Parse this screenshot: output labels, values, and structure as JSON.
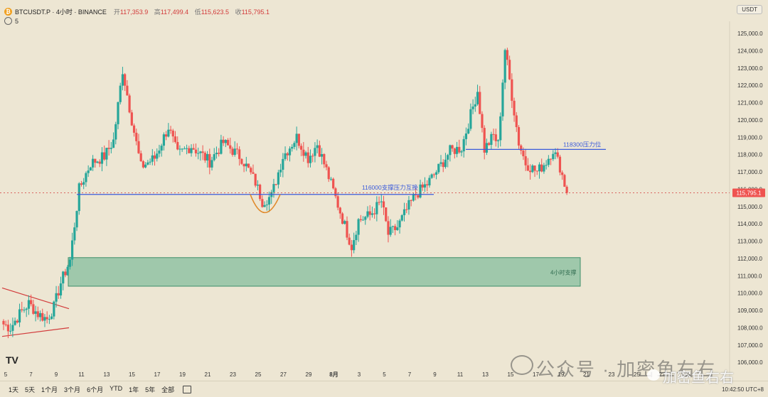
{
  "header": {
    "symbol": "BTCUSDT.P",
    "interval": "4小时",
    "exchange": "BINANCE",
    "title_full": "BTCUSDT.P · 4小时 · BINANCE",
    "open_label": "开",
    "open_value": "117,353.9",
    "high_label": "高",
    "high_value": "117,499.4",
    "low_label": "低",
    "low_value": "115,623.5",
    "close_label": "收",
    "close_value": "115,795.1",
    "indicator_count": "5"
  },
  "unit_label": "USDT",
  "last_price_label": "115,795.1",
  "colors": {
    "up": "#26a69a",
    "down": "#ef5350",
    "support_zone": "#5fae8a",
    "line": "#3b5bdb"
  },
  "chart_data": {
    "type": "candlestick",
    "interval": "4h",
    "x_labels": [
      "5",
      "7",
      "9",
      "11",
      "13",
      "15",
      "17",
      "19",
      "21",
      "23",
      "25",
      "27",
      "29",
      "8月",
      "3",
      "5",
      "7",
      "9",
      "11",
      "13",
      "15",
      "17",
      "19",
      "21",
      "23",
      "25",
      "27",
      "29"
    ],
    "y_ticks": [
      "125,000.0",
      "124,000.0",
      "123,000.0",
      "122,000.0",
      "121,000.0",
      "120,000.0",
      "119,000.0",
      "118,000.0",
      "117,000.0",
      "116,000.0",
      "115,000.0",
      "114,000.0",
      "113,000.0",
      "112,000.0",
      "111,000.0",
      "110,000.0",
      "109,000.0",
      "108,000.0",
      "107,000.0",
      "106,000.0"
    ],
    "ylim": [
      105600,
      125700
    ],
    "path_anchors": [
      [
        0,
        108200
      ],
      [
        3,
        108000
      ],
      [
        7,
        108800
      ],
      [
        11,
        109400
      ],
      [
        15,
        108800
      ],
      [
        19,
        108500
      ],
      [
        22,
        109200
      ],
      [
        25,
        110600
      ],
      [
        29,
        111900
      ],
      [
        33,
        116000
      ],
      [
        38,
        117500
      ],
      [
        44,
        117900
      ],
      [
        48,
        118800
      ],
      [
        52,
        122900
      ],
      [
        56,
        120000
      ],
      [
        60,
        117300
      ],
      [
        66,
        117800
      ],
      [
        72,
        119600
      ],
      [
        76,
        118000
      ],
      [
        82,
        118500
      ],
      [
        90,
        117600
      ],
      [
        96,
        118700
      ],
      [
        104,
        117800
      ],
      [
        110,
        116400
      ],
      [
        113,
        115300
      ],
      [
        117,
        115600
      ],
      [
        122,
        117900
      ],
      [
        128,
        119000
      ],
      [
        133,
        117800
      ],
      [
        137,
        118600
      ],
      [
        141,
        117100
      ],
      [
        145,
        115500
      ],
      [
        148,
        114300
      ],
      [
        152,
        112700
      ],
      [
        155,
        114200
      ],
      [
        160,
        114500
      ],
      [
        165,
        115300
      ],
      [
        168,
        113400
      ],
      [
        172,
        113800
      ],
      [
        176,
        114800
      ],
      [
        180,
        115700
      ],
      [
        185,
        116300
      ],
      [
        190,
        117200
      ],
      [
        195,
        118200
      ],
      [
        200,
        118400
      ],
      [
        204,
        120300
      ],
      [
        207,
        121700
      ],
      [
        210,
        118300
      ],
      [
        214,
        119100
      ],
      [
        216,
        118600
      ],
      [
        219,
        124100
      ],
      [
        222,
        121400
      ],
      [
        225,
        118700
      ],
      [
        228,
        117500
      ],
      [
        233,
        117000
      ],
      [
        237,
        117600
      ],
      [
        240,
        118300
      ],
      [
        243,
        117300
      ],
      [
        246,
        115800
      ]
    ],
    "annotations": [
      {
        "text": "116000支撑压力互换",
        "price": 115700
      },
      {
        "text": "118300压力位",
        "price": 118300
      },
      {
        "text": "4小时支撑",
        "zone": [
          110400,
          112050
        ]
      }
    ],
    "zone_4h_support": [
      110400,
      112050
    ],
    "line_116000": 115700,
    "line_118300": 118300
  },
  "toolbar": {
    "ranges": [
      "1天",
      "5天",
      "1个月",
      "3个月",
      "6个月",
      "YTD",
      "1年",
      "5年",
      "全部"
    ],
    "time": "10:42:50 UTC+8"
  },
  "watermark": {
    "text1": "公众号 · 加密鱼右右",
    "text2": "加密鱼右右"
  }
}
